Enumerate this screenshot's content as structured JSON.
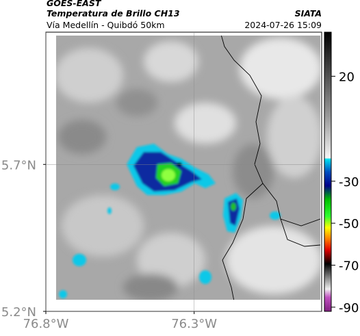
{
  "header": {
    "line1": "GOES-EAST",
    "title": "Temperatura de Brillo CH13",
    "source": "SIATA",
    "route": "Vía Medellín - Quibdó 50km",
    "datetime": "2024-07-26 15:09"
  },
  "map": {
    "xlim": [
      -76.8,
      -75.87
    ],
    "ylim": [
      5.2,
      6.15
    ],
    "xticks": [
      {
        "value": -76.8,
        "label": "76.8°W"
      },
      {
        "value": -76.3,
        "label": "76.3°W"
      }
    ],
    "yticks": [
      {
        "value": 5.7,
        "label": "5.7°N"
      },
      {
        "value": 5.2,
        "label": "5.2°N"
      }
    ],
    "grid": true
  },
  "colorbar": {
    "lim": [
      -92,
      41
    ],
    "ticks": [
      20,
      -30,
      -50,
      -70,
      -90
    ]
  }
}
